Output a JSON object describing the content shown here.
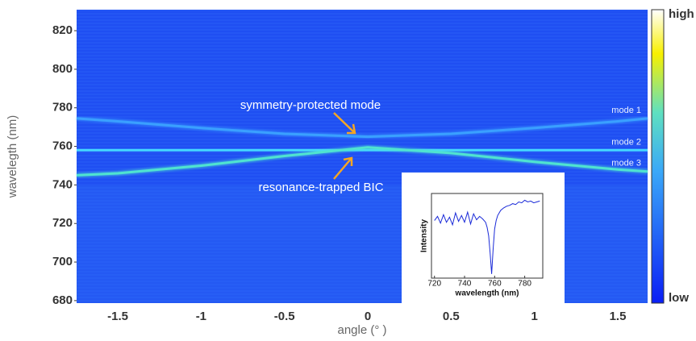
{
  "chart_data": [
    {
      "type": "line",
      "x_label": "angle (° )",
      "y_label": "wavelegth (nm)",
      "xlim": [
        -1.747,
        1.679
      ],
      "ylim": [
        678.7,
        830.9
      ],
      "xticks": [
        -1.5,
        -1,
        -0.5,
        0,
        0.5,
        1,
        1.5
      ],
      "yticks": [
        680,
        700,
        720,
        740,
        760,
        780,
        800,
        820
      ],
      "x": [
        -1.747,
        -1.5,
        -1,
        -0.5,
        0,
        0.5,
        1,
        1.5,
        1.679
      ],
      "series": [
        {
          "name": "mode 1",
          "color": "#3aa0ff",
          "values": [
            774.5,
            773,
            769.5,
            766.5,
            765,
            766.5,
            769.5,
            773,
            774.5
          ]
        },
        {
          "name": "mode 2",
          "color": "#45d8ff",
          "values": [
            758,
            758,
            758,
            758,
            758,
            758,
            758,
            758,
            758
          ]
        },
        {
          "name": "mode 3",
          "color": "#4fe3d0",
          "values": [
            745,
            746,
            750,
            755,
            759.5,
            756.5,
            752,
            748,
            747
          ]
        }
      ],
      "annotations": [
        "symmetry-protected mode",
        "resonance-trapped BIC"
      ],
      "colorbar_labels": [
        "high",
        "low"
      ]
    },
    {
      "type": "line",
      "x_label": "wavelength (nm)",
      "y_label": "Intensity",
      "xlim": [
        718,
        792
      ],
      "ylim": [
        0,
        1
      ],
      "xticks": [
        720,
        740,
        760,
        780
      ],
      "x": [
        720,
        722,
        724,
        726,
        728,
        730,
        732,
        734,
        736,
        738,
        740,
        742,
        744,
        746,
        748,
        750,
        752,
        754,
        755,
        756,
        757,
        758,
        759,
        760,
        761,
        762,
        764,
        766,
        768,
        770,
        772,
        774,
        776,
        778,
        780,
        782,
        784,
        786,
        788,
        790
      ],
      "series": [
        {
          "name": "",
          "color": "#1a2ad8",
          "values": [
            0.68,
            0.73,
            0.65,
            0.75,
            0.66,
            0.72,
            0.63,
            0.77,
            0.67,
            0.74,
            0.66,
            0.78,
            0.64,
            0.76,
            0.69,
            0.73,
            0.7,
            0.66,
            0.6,
            0.5,
            0.3,
            0.05,
            0.35,
            0.58,
            0.68,
            0.74,
            0.8,
            0.83,
            0.85,
            0.86,
            0.88,
            0.87,
            0.9,
            0.89,
            0.92,
            0.9,
            0.91,
            0.89,
            0.9,
            0.91
          ]
        }
      ]
    }
  ]
}
